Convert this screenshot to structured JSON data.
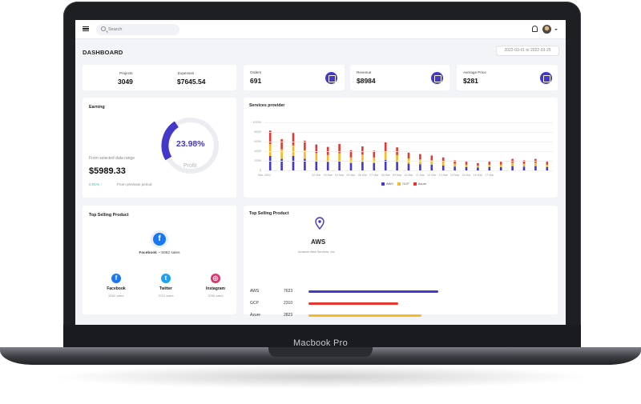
{
  "device": {
    "label": "Macbook Pro"
  },
  "header": {
    "search_placeholder": "Search"
  },
  "page": {
    "title": "DASHBOARD",
    "date_range": "2022-03-01 to 2022-03-25"
  },
  "kpis": {
    "projects": {
      "label": "Projects",
      "value": "3049"
    },
    "expenses": {
      "label": "Expenses",
      "value": "$7645.54"
    },
    "orders": {
      "label": "Orders",
      "value": "691"
    },
    "revenue": {
      "label": "Revenue",
      "value": "$8984"
    },
    "avg_price": {
      "label": "Average Price",
      "value": "$281"
    }
  },
  "earning": {
    "title": "Earning",
    "percent": "23.98%",
    "percent_value": 23.98,
    "gauge_label": "Profit",
    "range_text": "From selected data range",
    "amount": "$5989.33",
    "change": "0.91% ↑",
    "period_text": "From previous period",
    "accent": "#4338ca"
  },
  "services": {
    "title": "Services provider",
    "yticks": [
      "10000",
      "8000",
      "6000",
      "4000",
      "2000",
      "0"
    ],
    "xticks": [
      "Mar, 2022",
      "02 Mar",
      "03 Mar",
      "04 Mar",
      "05 Mar",
      "06 Mar",
      "07 Mar",
      "08 Mar",
      "09 Mar",
      "10 Mar",
      "11 Mar",
      "12 Mar",
      "13 Mar",
      "14 Mar",
      "15 Mar",
      "16 Mar",
      "17 Mar"
    ],
    "legend": [
      {
        "name": "AWS",
        "color": "#4338ca"
      },
      {
        "name": "GCP",
        "color": "#f5b921"
      },
      {
        "name": "Azure",
        "color": "#e5372f"
      }
    ]
  },
  "chart_data": {
    "type": "bar",
    "stacked": true,
    "title": "Services provider",
    "ylim": [
      0,
      10000
    ],
    "categories": [
      "1",
      "2",
      "3",
      "4",
      "5",
      "6",
      "7",
      "8",
      "9",
      "10",
      "11",
      "12",
      "13",
      "14",
      "15",
      "16",
      "17",
      "18",
      "19",
      "20",
      "21",
      "22",
      "23",
      "24",
      "25"
    ],
    "series": [
      {
        "name": "AWS",
        "values": [
          3000,
          2400,
          3000,
          2400,
          2000,
          1800,
          2000,
          1500,
          1800,
          1500,
          2200,
          1800,
          1400,
          1300,
          1200,
          1000,
          800,
          700,
          600,
          700,
          700,
          900,
          800,
          900,
          700
        ]
      },
      {
        "name": "GCP",
        "values": [
          2500,
          2000,
          2200,
          1800,
          1600,
          1400,
          1600,
          1200,
          1500,
          1200,
          1800,
          1400,
          1100,
          1000,
          900,
          800,
          600,
          500,
          400,
          500,
          500,
          700,
          600,
          700,
          500
        ]
      },
      {
        "name": "Azure",
        "values": [
          2800,
          2100,
          2600,
          2000,
          1800,
          1700,
          1900,
          1500,
          1700,
          1400,
          2000,
          1600,
          1200,
          1100,
          1000,
          900,
          700,
          600,
          500,
          600,
          600,
          800,
          700,
          800,
          600
        ]
      }
    ]
  },
  "top_social": {
    "title": "Top Selling Product",
    "featured": {
      "name": "Facebook",
      "sales_text": "~ 5082 sales"
    },
    "items": [
      {
        "name": "Facebook",
        "sub": "5082 sales",
        "color": "#1877f2",
        "glyph": "f"
      },
      {
        "name": "Twitter",
        "sub": "2012 sales",
        "color": "#1da1f2",
        "glyph": "t"
      },
      {
        "name": "Instagram",
        "sub": "3256 sales",
        "color": "#e1306c",
        "glyph": "◎"
      }
    ]
  },
  "top_product": {
    "title": "Top Selling Product",
    "name": "AWS",
    "desc": "Amazon Web Services, Inc.",
    "rows": [
      {
        "label": "AWS",
        "value": "7623",
        "color": "#4338ca",
        "fraction": 1.0
      },
      {
        "label": "GCP",
        "value": "2310",
        "color": "#e5372f",
        "fraction": 0.69
      },
      {
        "label": "Azure",
        "value": "2823",
        "color": "#f5b921",
        "fraction": 0.87
      }
    ]
  }
}
